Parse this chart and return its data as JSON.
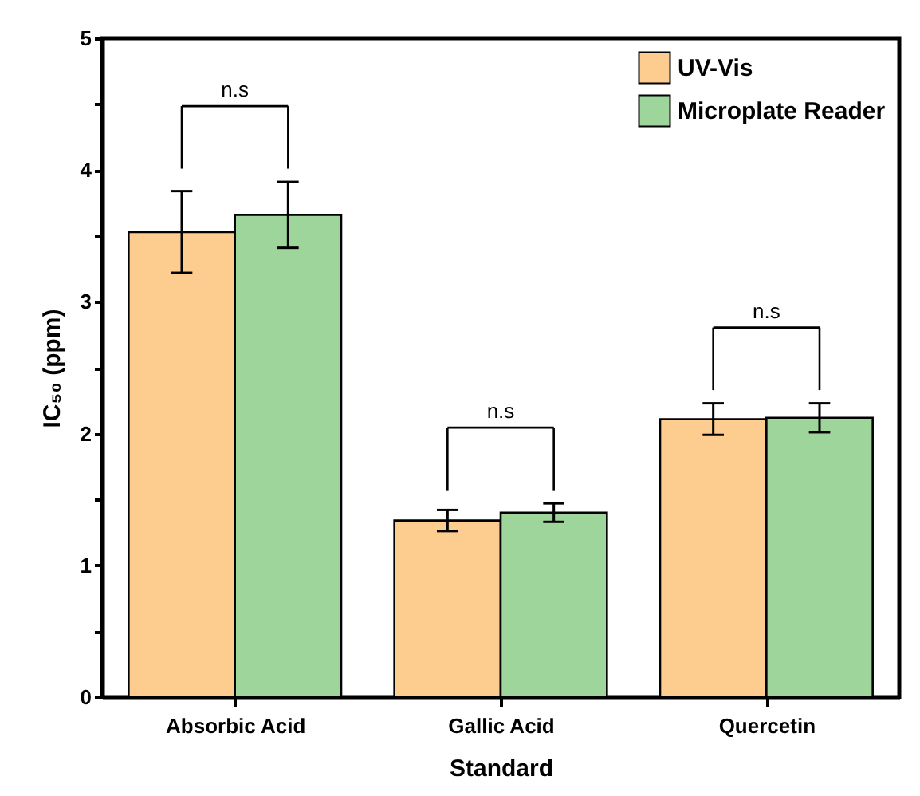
{
  "chart_data": {
    "type": "bar",
    "xlabel": "Standard",
    "ylabel": "IC₅₀ (ppm)",
    "categories": [
      "Absorbic Acid",
      "Gallic Acid",
      "Quercetin"
    ],
    "series": [
      {
        "name": "UV-Vis",
        "color": "#fdcc8f",
        "values": [
          3.53,
          1.34,
          2.11
        ],
        "errors": [
          0.31,
          0.08,
          0.12
        ]
      },
      {
        "name": "Microplate Reader",
        "color": "#9dd59b",
        "values": [
          3.66,
          1.4,
          2.12
        ],
        "errors": [
          0.25,
          0.07,
          0.11
        ]
      }
    ],
    "ylim": [
      0,
      5
    ],
    "yticks": [
      0,
      {
        "value": 0.5,
        "label": null
      },
      1,
      {
        "value": 1.5,
        "label": null
      },
      2,
      {
        "value": 2.5,
        "label": null
      },
      3,
      {
        "value": 3.5,
        "label": null
      },
      4,
      {
        "value": 4.5,
        "label": null
      },
      5
    ],
    "annotations": [
      "n.s",
      "n.s",
      "n.s"
    ],
    "legend": "top right",
    "grid": false
  }
}
